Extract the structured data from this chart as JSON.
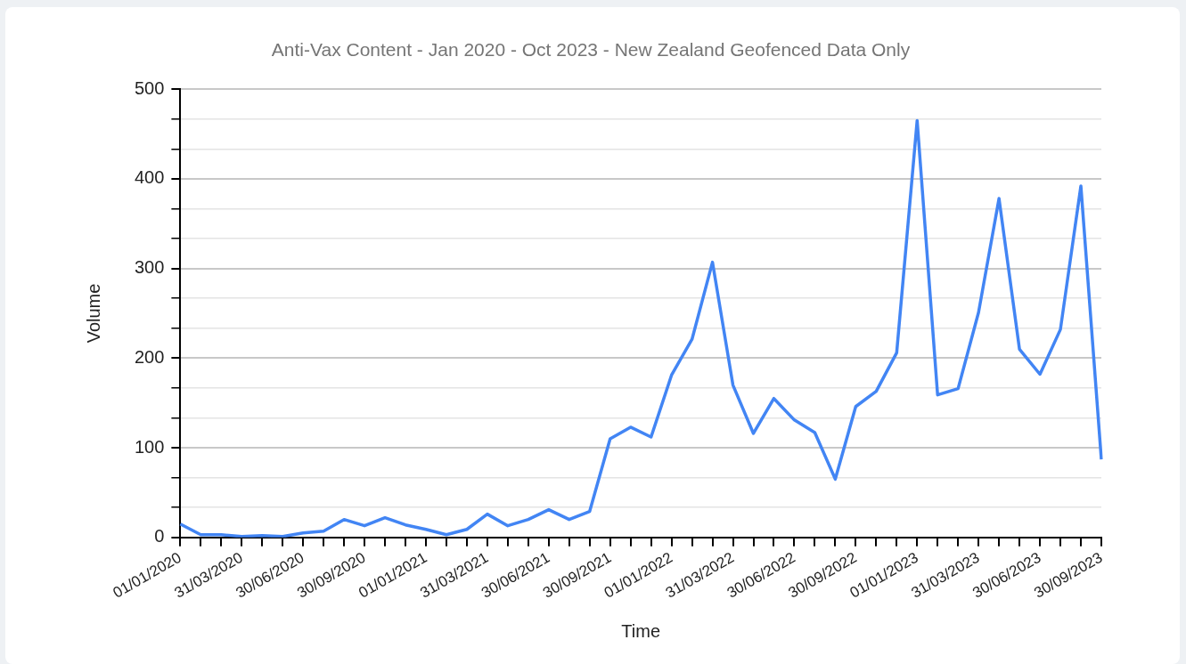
{
  "chart_data": {
    "type": "line",
    "title": "Anti-Vax Content - Jan 2020 - Oct 2023 - New Zealand Geofenced Data Only",
    "xlabel": "Time",
    "ylabel": "Volume",
    "categories": [
      "01/01/2020",
      null,
      null,
      "31/03/2020",
      null,
      null,
      "30/06/2020",
      null,
      null,
      "30/09/2020",
      null,
      null,
      "01/01/2021",
      null,
      null,
      "31/03/2021",
      null,
      null,
      "30/06/2021",
      null,
      null,
      "30/09/2021",
      null,
      null,
      "01/01/2022",
      null,
      null,
      "31/03/2022",
      null,
      null,
      "30/06/2022",
      null,
      null,
      "30/09/2022",
      null,
      null,
      "01/01/2023",
      null,
      null,
      "31/03/2023",
      null,
      null,
      "30/06/2023",
      null,
      null,
      "30/09/2023"
    ],
    "series": [
      {
        "color": "#4285f4",
        "values": [
          15,
          3,
          3,
          1,
          2,
          1,
          5,
          7,
          20,
          13,
          22,
          14,
          9,
          3,
          9,
          26,
          13,
          20,
          31,
          20,
          29,
          110,
          123,
          112,
          181,
          221,
          307,
          170,
          116,
          155,
          131,
          117,
          65,
          146,
          163,
          206,
          465,
          159,
          166,
          251,
          378,
          210,
          182,
          232,
          392,
          87
        ]
      }
    ],
    "ylim": [
      0,
      500
    ],
    "yticks": [
      0,
      {
        "value": 33.33,
        "label": null
      },
      {
        "value": 66.67,
        "label": null
      },
      100,
      {
        "value": 133.33,
        "label": null
      },
      {
        "value": 166.67,
        "label": null
      },
      200,
      {
        "value": 233.33,
        "label": null
      },
      {
        "value": 266.67,
        "label": null
      },
      300,
      {
        "value": 333.33,
        "label": null
      },
      {
        "value": 366.67,
        "label": null
      },
      400,
      {
        "value": 433.33,
        "label": null
      },
      {
        "value": 466.67,
        "label": null
      },
      500
    ],
    "grid": "y",
    "legend": false,
    "marker": "none",
    "line_style": "solid"
  }
}
